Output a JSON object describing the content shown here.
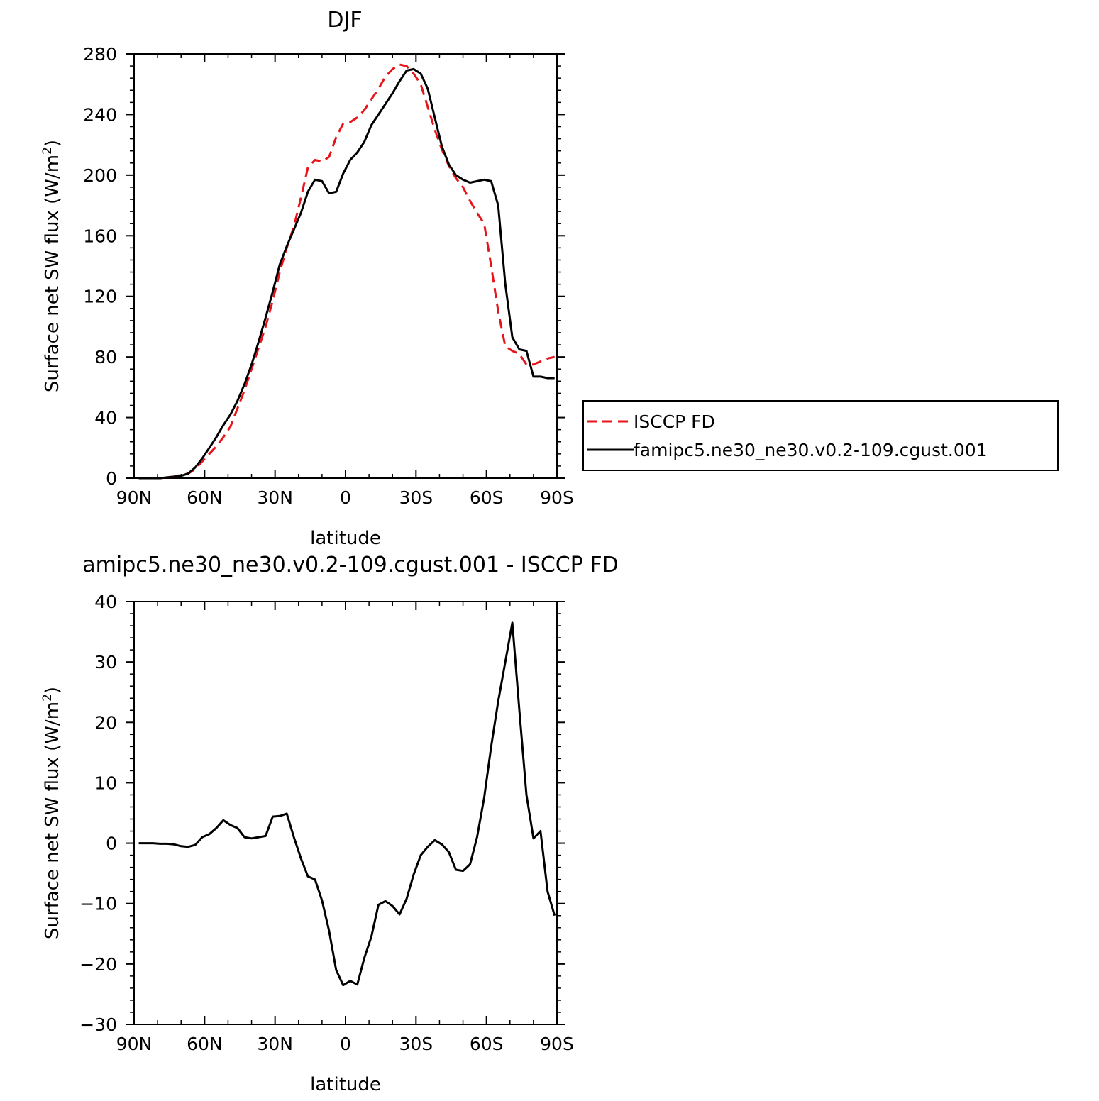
{
  "chart_data": [
    {
      "type": "line",
      "title": "DJF",
      "xlabel": "latitude",
      "ylabel": "Surface net SW flux (W/m",
      "ylabel_sup": "2",
      "ylabel_close": ")",
      "xlim": [
        90,
        -90
      ],
      "ylim": [
        0,
        280
      ],
      "x_ticks": [
        90,
        60,
        30,
        0,
        -30,
        -60,
        -90
      ],
      "x_tick_labels": [
        "90N",
        "60N",
        "30N",
        "0",
        "30S",
        "60S",
        "90S"
      ],
      "y_ticks": [
        0,
        40,
        80,
        120,
        160,
        200,
        240,
        280
      ],
      "y_tick_labels": [
        "0",
        "40",
        "80",
        "120",
        "160",
        "200",
        "240",
        "280"
      ],
      "legend": [
        {
          "label": "ISCCP FD",
          "color": "#e8141b",
          "dash": "dashed"
        },
        {
          "label": "famipc5.ne30_ne30.v0.2-109.cgust.001",
          "color": "#000000",
          "dash": "solid"
        }
      ],
      "series": [
        {
          "name": "ISCCP FD",
          "color": "#e8141b",
          "dash": "dashed",
          "x": [
            88,
            85,
            82,
            79,
            76,
            73,
            70,
            67,
            64,
            61,
            58,
            55,
            52,
            49,
            46,
            43,
            40,
            37,
            34,
            31,
            28,
            25,
            22,
            19,
            16,
            13,
            10,
            7,
            4,
            1,
            -2,
            -5,
            -8,
            -11,
            -14,
            -17,
            -20,
            -23,
            -26,
            -29,
            -32,
            -35,
            -38,
            -41,
            -44,
            -47,
            -50,
            -53,
            -56,
            -59,
            -62,
            -65,
            -68,
            -71,
            -74,
            -77,
            -80,
            -83,
            -86,
            -89
          ],
          "y": [
            0,
            0,
            0,
            0,
            0.5,
            1,
            2,
            3,
            6,
            11,
            16,
            21,
            27,
            34,
            46,
            58,
            72,
            86,
            100,
            117,
            136,
            152,
            166,
            185,
            205,
            210,
            209,
            212,
            225,
            234,
            235,
            238,
            243,
            250,
            257,
            265,
            270,
            273,
            272,
            267,
            260,
            245,
            230,
            217,
            206,
            198,
            192,
            183,
            175,
            168,
            140,
            110,
            87,
            84,
            82,
            75,
            75,
            77,
            79,
            80
          ]
        },
        {
          "name": "famipc5.ne30_ne30.v0.2-109.cgust.001",
          "color": "#000000",
          "dash": "solid",
          "x": [
            88,
            85,
            82,
            79,
            76,
            73,
            70,
            67,
            64,
            61,
            58,
            55,
            52,
            49,
            46,
            43,
            40,
            37,
            34,
            31,
            28,
            25,
            22,
            19,
            16,
            13,
            10,
            7,
            4,
            1,
            -2,
            -5,
            -8,
            -11,
            -14,
            -17,
            -20,
            -23,
            -26,
            -29,
            -32,
            -35,
            -38,
            -41,
            -44,
            -47,
            -50,
            -53,
            -56,
            -59,
            -62,
            -65,
            -68,
            -71,
            -74,
            -77,
            -80,
            -83,
            -86,
            -89
          ],
          "y": [
            0,
            0,
            0,
            0,
            0.5,
            1,
            1.5,
            3,
            7,
            13,
            20,
            27,
            35,
            42,
            51,
            62,
            75,
            90,
            106,
            123,
            141,
            153,
            164,
            175,
            189,
            197,
            196,
            188,
            189,
            201,
            210,
            215,
            222,
            233,
            240,
            247,
            254,
            262,
            269,
            270,
            267,
            257,
            238,
            219,
            207,
            200,
            197,
            195,
            196,
            197,
            196,
            180,
            128,
            93,
            85,
            84,
            67,
            67,
            66,
            66
          ]
        }
      ]
    },
    {
      "type": "line",
      "title": "amipc5.ne30_ne30.v0.2-109.cgust.001 - ISCCP FD",
      "xlabel": "latitude",
      "ylabel": "Surface net SW flux (W/m",
      "ylabel_sup": "2",
      "ylabel_close": ")",
      "xlim": [
        90,
        -90
      ],
      "ylim": [
        -30,
        40
      ],
      "x_ticks": [
        90,
        60,
        30,
        0,
        -30,
        -60,
        -90
      ],
      "x_tick_labels": [
        "90N",
        "60N",
        "30N",
        "0",
        "30S",
        "60S",
        "90S"
      ],
      "y_ticks": [
        -30,
        -20,
        -10,
        0,
        10,
        20,
        30,
        40
      ],
      "y_tick_labels": [
        "−30",
        "−20",
        "−10",
        "0",
        "10",
        "20",
        "30",
        "40"
      ],
      "series": [
        {
          "name": "famipc5.ne30_ne30.v0.2-109.cgust.001 - ISCCP FD",
          "color": "#000000",
          "dash": "solid",
          "x": [
            88,
            85,
            82,
            79,
            76,
            73,
            70,
            67,
            64,
            61,
            58,
            55,
            52,
            49,
            46,
            43,
            40,
            37,
            34,
            31,
            28,
            25,
            22,
            19,
            16,
            13,
            10,
            7,
            4,
            1,
            -2,
            -5,
            -8,
            -11,
            -14,
            -17,
            -20,
            -23,
            -26,
            -29,
            -32,
            -35,
            -38,
            -41,
            -44,
            -47,
            -50,
            -53,
            -56,
            -59,
            -62,
            -65,
            -68,
            -71,
            -74,
            -77,
            -80,
            -83,
            -86,
            -89
          ],
          "y": [
            0,
            0,
            0,
            -0.1,
            -0.1,
            -0.2,
            -0.5,
            -0.6,
            -0.3,
            1.0,
            1.5,
            2.5,
            3.8,
            3.0,
            2.5,
            1.0,
            0.8,
            1.0,
            1.2,
            4.4,
            4.5,
            4.9,
            1.0,
            -2.5,
            -5.5,
            -6.0,
            -9.5,
            -14.5,
            -21.0,
            -23.5,
            -22.8,
            -23.4,
            -19.0,
            -15.5,
            -10.2,
            -9.6,
            -10.4,
            -11.8,
            -9.2,
            -5.2,
            -2.0,
            -0.6,
            0.5,
            -0.2,
            -1.5,
            -4.4,
            -4.6,
            -3.5,
            1.0,
            7.5,
            16.0,
            23.5,
            30.0,
            36.5,
            22.0,
            8.0,
            0.8,
            2.0,
            -8.0,
            -12.0
          ]
        }
      ]
    }
  ]
}
